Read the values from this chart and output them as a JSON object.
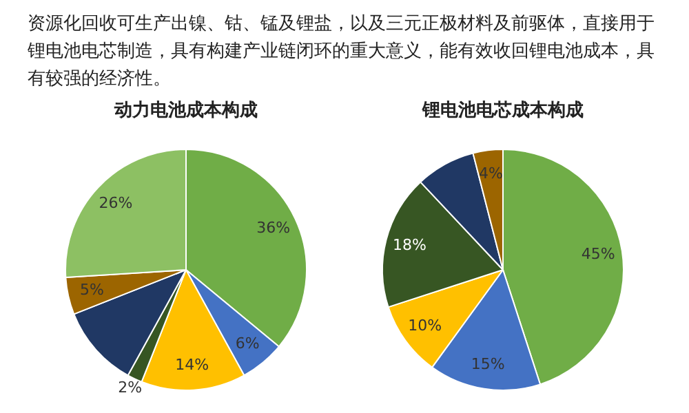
{
  "chart_data": [
    {
      "type": "pie",
      "title": "动力电池成本构成",
      "annotations": [
        "资源化回收可生产出镍、钴、锰及锂盐，以及三元正极材料及前驱体，直接用于锂电池电芯制造，具有构建产业链闭环的重大意义，能有效收回锂电池成本，具有较强的经济性。"
      ],
      "categories": [
        null,
        null,
        null,
        null,
        null,
        null,
        null
      ],
      "values": [
        36,
        6,
        14,
        2,
        11,
        5,
        26
      ],
      "value_labels": [
        "36%",
        "6%",
        "14%",
        "2%",
        null,
        "5%",
        "26%"
      ],
      "colors": [
        "#70ad47",
        "#4472c4",
        "#ffc000",
        "#375623",
        "#203864",
        "#9c6500",
        "#8dc063"
      ]
    },
    {
      "type": "pie",
      "title": "锂电池电芯成本构成",
      "categories": [
        null,
        null,
        null,
        null,
        null,
        null
      ],
      "values": [
        45,
        15,
        10,
        18,
        8,
        4
      ],
      "value_labels": [
        "45%",
        "15%",
        "10%",
        "18%",
        null,
        "4%"
      ],
      "colors": [
        "#70ad47",
        "#4472c4",
        "#ffc000",
        "#375623",
        "#203864",
        "#9c6500"
      ]
    }
  ]
}
